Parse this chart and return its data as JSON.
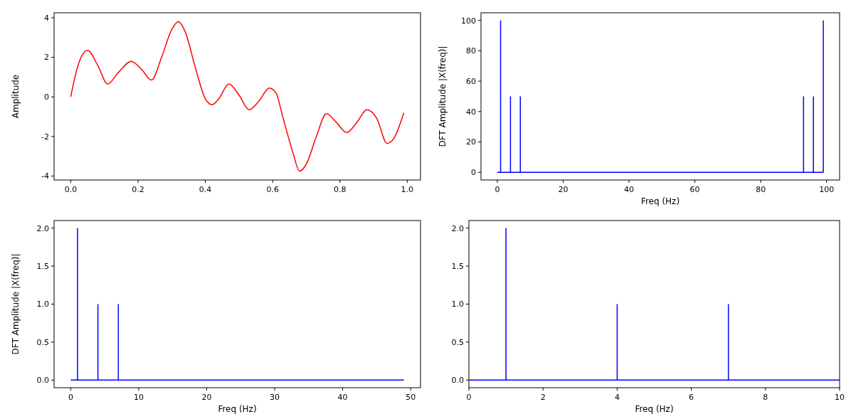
{
  "chart_data": [
    {
      "type": "line",
      "ylabel": "Amplitude",
      "x": [
        0,
        0.02,
        0.05,
        0.08,
        0.11,
        0.14,
        0.18,
        0.21,
        0.24,
        0.27,
        0.3,
        0.32,
        0.34,
        0.37,
        0.4,
        0.42,
        0.44,
        0.47,
        0.5,
        0.53,
        0.56,
        0.59,
        0.61,
        0.63,
        0.66,
        0.68,
        0.7,
        0.73,
        0.76,
        0.79,
        0.82,
        0.85,
        0.88,
        0.91,
        0.94,
        0.96,
        0.99
      ],
      "series": [
        {
          "color": "#ff0000",
          "values": [
            0,
            1.5,
            2.35,
            1.6,
            0.65,
            1.2,
            1.8,
            1.4,
            0.85,
            2.0,
            3.4,
            3.8,
            3.3,
            1.5,
            -0.1,
            -0.4,
            -0.1,
            0.65,
            0.1,
            -0.65,
            -0.2,
            0.45,
            0.2,
            -1.0,
            -2.8,
            -3.75,
            -3.4,
            -2.0,
            -0.85,
            -1.3,
            -1.8,
            -1.3,
            -0.65,
            -1.1,
            -2.35,
            -2.1,
            -0.8
          ]
        }
      ],
      "xlim": [
        -0.0495,
        1.0395
      ],
      "xticks": [
        {
          "value": 0,
          "label": "0.0"
        },
        {
          "value": 0.2,
          "label": "0.2"
        },
        {
          "value": 0.4,
          "label": "0.4"
        },
        {
          "value": 0.6,
          "label": "0.6"
        },
        {
          "value": 0.8,
          "label": "0.8"
        },
        {
          "value": 1,
          "label": "1.0"
        }
      ],
      "ylim": [
        -4.2,
        4.25
      ],
      "yticks": [
        -4,
        -2,
        0,
        2,
        4
      ]
    },
    {
      "type": "bar",
      "ref_lines": [
        {
          "axis": "y",
          "value": 0,
          "color": "#0000ff"
        }
      ],
      "xlabel": "Freq (Hz)",
      "ylabel": "DFT Amplitude |X(freq)|",
      "x": [
        0,
        1,
        2,
        3,
        4,
        5,
        6,
        7,
        8,
        9,
        10,
        11,
        12,
        13,
        14,
        15,
        16,
        17,
        18,
        19,
        20,
        21,
        22,
        23,
        24,
        25,
        26,
        27,
        28,
        29,
        30,
        31,
        32,
        33,
        34,
        35,
        36,
        37,
        38,
        39,
        40,
        41,
        42,
        43,
        44,
        45,
        46,
        47,
        48,
        49,
        50,
        51,
        52,
        53,
        54,
        55,
        56,
        57,
        58,
        59,
        60,
        61,
        62,
        63,
        64,
        65,
        66,
        67,
        68,
        69,
        70,
        71,
        72,
        73,
        74,
        75,
        76,
        77,
        78,
        79,
        80,
        81,
        82,
        83,
        84,
        85,
        86,
        87,
        88,
        89,
        90,
        91,
        92,
        93,
        94,
        95,
        96,
        97,
        98,
        99
      ],
      "series": [
        {
          "color": "#0000ff",
          "values": [
            0,
            100,
            0,
            0,
            50,
            0,
            0,
            50,
            0,
            0,
            0,
            0,
            0,
            0,
            0,
            0,
            0,
            0,
            0,
            0,
            0,
            0,
            0,
            0,
            0,
            0,
            0,
            0,
            0,
            0,
            0,
            0,
            0,
            0,
            0,
            0,
            0,
            0,
            0,
            0,
            0,
            0,
            0,
            0,
            0,
            0,
            0,
            0,
            0,
            0,
            0,
            0,
            0,
            0,
            0,
            0,
            0,
            0,
            0,
            0,
            0,
            0,
            0,
            0,
            0,
            0,
            0,
            0,
            0,
            0,
            0,
            0,
            0,
            0,
            0,
            0,
            0,
            0,
            0,
            0,
            0,
            0,
            0,
            0,
            0,
            0,
            0,
            0,
            0,
            0,
            0,
            0,
            0,
            50,
            0,
            0,
            50,
            0,
            0,
            100
          ]
        }
      ],
      "xlim": [
        -4.95,
        103.95
      ],
      "xticks": [
        0,
        20,
        40,
        60,
        80,
        100
      ],
      "ylim": [
        -5,
        105
      ],
      "yticks": [
        0,
        20,
        40,
        60,
        80,
        100
      ]
    },
    {
      "type": "bar",
      "ref_lines": [
        {
          "axis": "y",
          "value": 0,
          "color": "#0000ff"
        }
      ],
      "xlabel": "Freq (Hz)",
      "ylabel": "DFT Amplitude |X(freq)|",
      "x": [
        0,
        1,
        2,
        3,
        4,
        5,
        6,
        7,
        8,
        9,
        10,
        11,
        12,
        13,
        14,
        15,
        16,
        17,
        18,
        19,
        20,
        21,
        22,
        23,
        24,
        25,
        26,
        27,
        28,
        29,
        30,
        31,
        32,
        33,
        34,
        35,
        36,
        37,
        38,
        39,
        40,
        41,
        42,
        43,
        44,
        45,
        46,
        47,
        48,
        49
      ],
      "series": [
        {
          "color": "#0000ff",
          "values": [
            0,
            2,
            0,
            0,
            1,
            0,
            0,
            1,
            0,
            0,
            0,
            0,
            0,
            0,
            0,
            0,
            0,
            0,
            0,
            0,
            0,
            0,
            0,
            0,
            0,
            0,
            0,
            0,
            0,
            0,
            0,
            0,
            0,
            0,
            0,
            0,
            0,
            0,
            0,
            0,
            0,
            0,
            0,
            0,
            0,
            0,
            0,
            0,
            0,
            0
          ]
        }
      ],
      "xlim": [
        -2.45,
        51.45
      ],
      "xticks": [
        0,
        10,
        20,
        30,
        40,
        50
      ],
      "ylim": [
        -0.1,
        2.1
      ],
      "yticks": [
        {
          "value": 0,
          "label": "0.0"
        },
        {
          "value": 0.5,
          "label": "0.5"
        },
        {
          "value": 1,
          "label": "1.0"
        },
        {
          "value": 1.5,
          "label": "1.5"
        },
        {
          "value": 2,
          "label": "2.0"
        }
      ]
    },
    {
      "type": "bar",
      "ref_lines": [
        {
          "axis": "y",
          "value": 0,
          "color": "#0000ff"
        }
      ],
      "xlabel": "Freq (Hz)",
      "x": [
        0,
        1,
        2,
        3,
        4,
        5,
        6,
        7,
        8,
        9,
        10
      ],
      "series": [
        {
          "color": "#0000ff",
          "values": [
            0,
            2,
            0,
            0,
            1,
            0,
            0,
            1,
            0,
            0,
            0
          ]
        }
      ],
      "xlim": [
        0,
        10
      ],
      "xticks": [
        0,
        2,
        4,
        6,
        8,
        10
      ],
      "ylim": [
        -0.1,
        2.1
      ],
      "yticks": [
        {
          "value": 0,
          "label": "0.0"
        },
        {
          "value": 0.5,
          "label": "0.5"
        },
        {
          "value": 1,
          "label": "1.0"
        },
        {
          "value": 1.5,
          "label": "1.5"
        },
        {
          "value": 2,
          "label": "2.0"
        }
      ]
    }
  ]
}
